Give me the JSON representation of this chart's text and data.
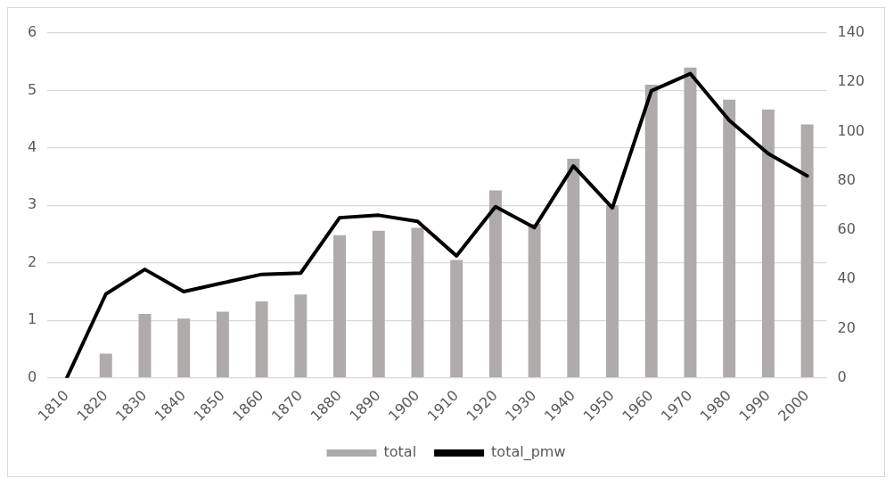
{
  "chart_data": {
    "type": "bar",
    "categories": [
      "1810",
      "1820",
      "1830",
      "1840",
      "1850",
      "1860",
      "1870",
      "1880",
      "1890",
      "1900",
      "1910",
      "1920",
      "1930",
      "1940",
      "1950",
      "1960",
      "1970",
      "1980",
      "1990",
      "2000"
    ],
    "series": [
      {
        "name": "total",
        "color": "#afabab",
        "values": [
          0,
          0.42,
          1.11,
          1.03,
          1.15,
          1.33,
          1.45,
          2.48,
          2.56,
          2.61,
          2.05,
          3.26,
          2.68,
          3.81,
          3.0,
          5.1,
          5.4,
          4.84,
          4.67,
          4.41
        ]
      },
      {
        "name": "total_pmw",
        "type": "line",
        "axis": "y2",
        "color": "#000000",
        "values": [
          0,
          34,
          44,
          35,
          38.5,
          42,
          42.5,
          65,
          66,
          63.5,
          49.5,
          69.5,
          61,
          86,
          69,
          116.5,
          123.5,
          104.5,
          91,
          82
        ]
      }
    ],
    "ylim": [
      0,
      6
    ],
    "yticks": [
      0,
      1,
      2,
      3,
      4,
      5,
      6
    ],
    "y2lim": [
      0,
      140
    ],
    "y2ticks": [
      0,
      20,
      40,
      60,
      80,
      100,
      120,
      140
    ],
    "grid": "y",
    "legend": "bottom",
    "marker": "none",
    "line_style": "solid"
  }
}
